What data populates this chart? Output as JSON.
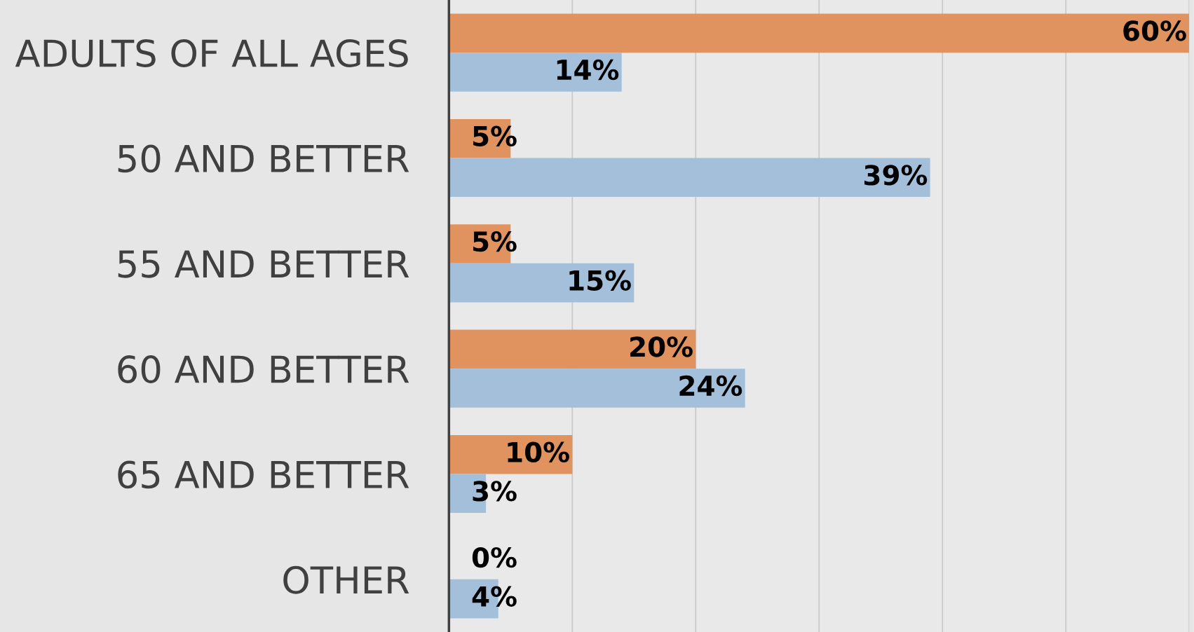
{
  "chart_data": {
    "type": "bar",
    "orientation": "horizontal",
    "categories": [
      "ADULTS OF ALL AGES",
      "50 AND BETTER",
      "55 AND BETTER",
      "60 AND BETTER",
      "65 AND BETTER",
      "OTHER"
    ],
    "series": [
      {
        "color": "#e0925f",
        "values": [
          60,
          5,
          5,
          20,
          10,
          0
        ],
        "value_labels": [
          "60%",
          "5%",
          "5%",
          "20%",
          "10%",
          "0%"
        ]
      },
      {
        "color": "#a3bfd9",
        "values": [
          14,
          39,
          15,
          24,
          3,
          4
        ],
        "value_labels": [
          "14%",
          "39%",
          "15%",
          "24%",
          "3%",
          "4%"
        ]
      }
    ],
    "xlim": [
      0,
      60
    ],
    "xticks": [
      {
        "value": 0,
        "label": null
      },
      {
        "value": 10,
        "label": null
      },
      {
        "value": 20,
        "label": null
      },
      {
        "value": 30,
        "label": null
      },
      {
        "value": 40,
        "label": null
      },
      {
        "value": 50,
        "label": null
      },
      {
        "value": 60,
        "label": null
      }
    ],
    "grid": "x",
    "legend": false,
    "tick_labels": "y"
  }
}
